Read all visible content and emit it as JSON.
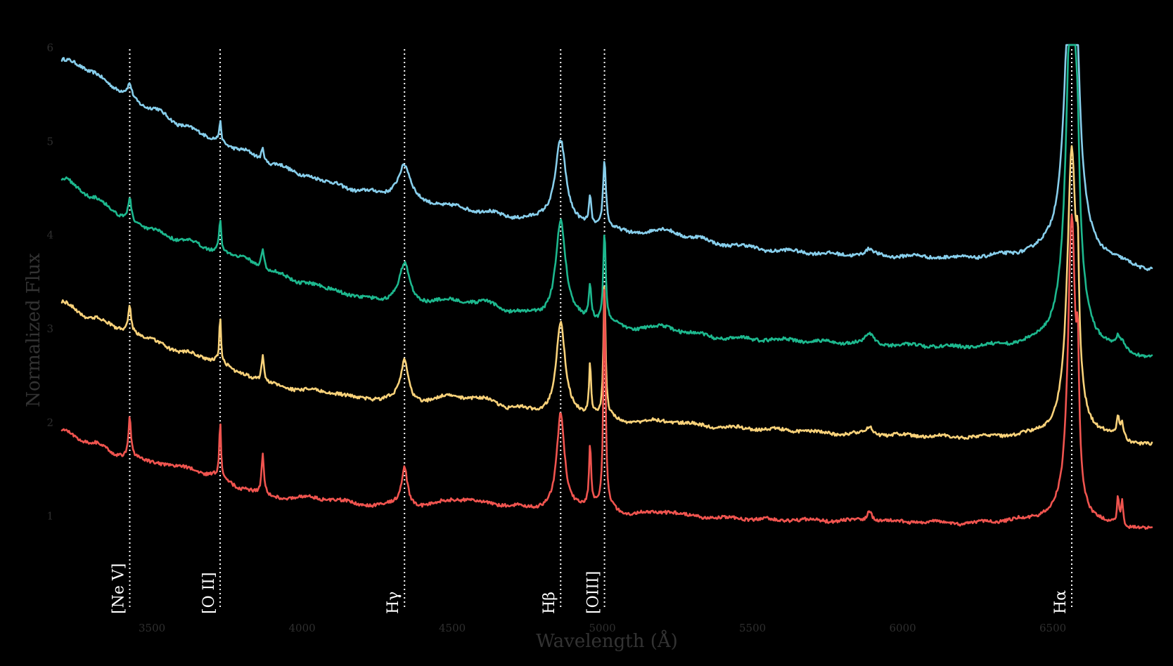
{
  "chart_data": {
    "type": "line",
    "title": "",
    "xlabel": "Wavelength (Å)",
    "ylabel": "Normalized Flux",
    "xlim": [
      3200,
      6830
    ],
    "ylim": [
      0.0,
      6.0
    ],
    "x_ticks": [
      3500,
      4000,
      4500,
      5000,
      5500,
      6000,
      6500
    ],
    "y_ticks": [
      1,
      2,
      3,
      4,
      5,
      6
    ],
    "grid": false,
    "legend": "none",
    "line_markers": [
      {
        "label": "[Ne V]",
        "x": 3426
      },
      {
        "label": "[O II]",
        "x": 3727
      },
      {
        "label": "Hγ",
        "x": 4341
      },
      {
        "label": "Hβ",
        "x": 4861
      },
      {
        "label": "[OIII]",
        "x": 5007
      },
      {
        "label": "Hα",
        "x": 6563
      }
    ],
    "series": [
      {
        "color": "#87CEEB",
        "continuum": [
          [
            3200,
            5.88
          ],
          [
            3300,
            5.75
          ],
          [
            3400,
            5.52
          ],
          [
            3500,
            5.35
          ],
          [
            3600,
            5.18
          ],
          [
            3700,
            5.03
          ],
          [
            3800,
            4.9
          ],
          [
            3900,
            4.76
          ],
          [
            4000,
            4.65
          ],
          [
            4100,
            4.55
          ],
          [
            4200,
            4.46
          ],
          [
            4300,
            4.42
          ],
          [
            4400,
            4.34
          ],
          [
            4500,
            4.3
          ],
          [
            4600,
            4.25
          ],
          [
            4700,
            4.18
          ],
          [
            4800,
            4.15
          ],
          [
            4900,
            4.08
          ],
          [
            5000,
            4.06
          ],
          [
            5100,
            4.02
          ],
          [
            5200,
            4.05
          ],
          [
            5300,
            3.98
          ],
          [
            5400,
            3.9
          ],
          [
            5600,
            3.83
          ],
          [
            5800,
            3.79
          ],
          [
            6000,
            3.77
          ],
          [
            6200,
            3.75
          ],
          [
            6400,
            3.77
          ],
          [
            6500,
            3.78
          ],
          [
            6650,
            3.72
          ],
          [
            6830,
            3.62
          ]
        ],
        "lines": [
          [
            3426,
            0.13,
            8
          ],
          [
            3727,
            0.22,
            4
          ],
          [
            3869,
            0.14,
            6
          ],
          [
            4341,
            0.35,
            25
          ],
          [
            4861,
            0.92,
            22
          ],
          [
            4959,
            0.3,
            5
          ],
          [
            5007,
            0.72,
            6
          ],
          [
            5890,
            0.06,
            15
          ],
          [
            6563,
            4.0,
            22
          ],
          [
            6583,
            0.3,
            6
          ]
        ]
      },
      {
        "color": "#1DB88E",
        "continuum": [
          [
            3200,
            4.6
          ],
          [
            3300,
            4.42
          ],
          [
            3400,
            4.2
          ],
          [
            3500,
            4.05
          ],
          [
            3600,
            3.95
          ],
          [
            3700,
            3.85
          ],
          [
            3800,
            3.76
          ],
          [
            3900,
            3.6
          ],
          [
            4000,
            3.5
          ],
          [
            4100,
            3.42
          ],
          [
            4200,
            3.32
          ],
          [
            4300,
            3.3
          ],
          [
            4400,
            3.28
          ],
          [
            4500,
            3.3
          ],
          [
            4600,
            3.28
          ],
          [
            4700,
            3.18
          ],
          [
            4800,
            3.12
          ],
          [
            4900,
            3.1
          ],
          [
            5000,
            3.06
          ],
          [
            5100,
            3.0
          ],
          [
            5200,
            3.02
          ],
          [
            5300,
            2.95
          ],
          [
            5400,
            2.9
          ],
          [
            5600,
            2.88
          ],
          [
            5800,
            2.85
          ],
          [
            6000,
            2.82
          ],
          [
            6200,
            2.8
          ],
          [
            6400,
            2.82
          ],
          [
            6500,
            2.85
          ],
          [
            6650,
            2.78
          ],
          [
            6830,
            2.68
          ]
        ],
        "lines": [
          [
            3426,
            0.24,
            6
          ],
          [
            3727,
            0.36,
            4
          ],
          [
            3869,
            0.22,
            6
          ],
          [
            4341,
            0.4,
            20
          ],
          [
            4861,
            1.05,
            20
          ],
          [
            4959,
            0.38,
            5
          ],
          [
            5007,
            0.95,
            5
          ],
          [
            5890,
            0.1,
            15
          ],
          [
            6563,
            4.2,
            20
          ],
          [
            6583,
            0.6,
            6
          ],
          [
            6717,
            0.1,
            6
          ],
          [
            6731,
            0.08,
            6
          ]
        ]
      },
      {
        "color": "#F9D27A",
        "continuum": [
          [
            3200,
            3.28
          ],
          [
            3300,
            3.12
          ],
          [
            3400,
            3.0
          ],
          [
            3500,
            2.88
          ],
          [
            3600,
            2.75
          ],
          [
            3700,
            2.68
          ],
          [
            3800,
            2.52
          ],
          [
            3900,
            2.4
          ],
          [
            4000,
            2.35
          ],
          [
            4100,
            2.32
          ],
          [
            4200,
            2.25
          ],
          [
            4300,
            2.25
          ],
          [
            4400,
            2.22
          ],
          [
            4500,
            2.28
          ],
          [
            4600,
            2.25
          ],
          [
            4700,
            2.15
          ],
          [
            4800,
            2.1
          ],
          [
            4900,
            2.08
          ],
          [
            5000,
            2.06
          ],
          [
            5100,
            2.0
          ],
          [
            5200,
            2.02
          ],
          [
            5300,
            1.98
          ],
          [
            5400,
            1.95
          ],
          [
            5600,
            1.92
          ],
          [
            5800,
            1.88
          ],
          [
            6000,
            1.86
          ],
          [
            6200,
            1.84
          ],
          [
            6400,
            1.85
          ],
          [
            6500,
            1.88
          ],
          [
            6650,
            1.84
          ],
          [
            6830,
            1.75
          ]
        ],
        "lines": [
          [
            3426,
            0.3,
            5
          ],
          [
            3727,
            0.5,
            3
          ],
          [
            3869,
            0.3,
            5
          ],
          [
            4341,
            0.42,
            15
          ],
          [
            4861,
            0.98,
            18
          ],
          [
            4959,
            0.55,
            4
          ],
          [
            5007,
            1.45,
            4
          ],
          [
            5890,
            0.08,
            12
          ],
          [
            6563,
            3.0,
            18
          ],
          [
            6583,
            1.0,
            5
          ],
          [
            6717,
            0.2,
            5
          ],
          [
            6731,
            0.16,
            5
          ]
        ]
      },
      {
        "color": "#F0544F",
        "continuum": [
          [
            3200,
            1.92
          ],
          [
            3300,
            1.78
          ],
          [
            3400,
            1.65
          ],
          [
            3500,
            1.58
          ],
          [
            3600,
            1.52
          ],
          [
            3700,
            1.45
          ],
          [
            3800,
            1.3
          ],
          [
            3900,
            1.2
          ],
          [
            4000,
            1.2
          ],
          [
            4100,
            1.18
          ],
          [
            4200,
            1.12
          ],
          [
            4300,
            1.12
          ],
          [
            4400,
            1.1
          ],
          [
            4500,
            1.18
          ],
          [
            4600,
            1.15
          ],
          [
            4700,
            1.1
          ],
          [
            4800,
            1.08
          ],
          [
            4900,
            1.1
          ],
          [
            5000,
            1.1
          ],
          [
            5100,
            1.02
          ],
          [
            5200,
            1.05
          ],
          [
            5300,
            1.0
          ],
          [
            5400,
            0.98
          ],
          [
            5600,
            0.96
          ],
          [
            5800,
            0.95
          ],
          [
            6000,
            0.94
          ],
          [
            6200,
            0.92
          ],
          [
            6400,
            0.95
          ],
          [
            6500,
            0.98
          ],
          [
            6650,
            0.9
          ],
          [
            6830,
            0.85
          ]
        ],
        "lines": [
          [
            3426,
            0.42,
            5
          ],
          [
            3727,
            0.6,
            3
          ],
          [
            3869,
            0.42,
            5
          ],
          [
            4341,
            0.42,
            12
          ],
          [
            4861,
            1.0,
            15
          ],
          [
            4959,
            0.65,
            4
          ],
          [
            5007,
            2.45,
            4
          ],
          [
            5890,
            0.12,
            10
          ],
          [
            6563,
            3.2,
            15
          ],
          [
            6583,
            1.1,
            5
          ],
          [
            6717,
            0.3,
            4
          ],
          [
            6731,
            0.25,
            4
          ]
        ]
      }
    ]
  }
}
